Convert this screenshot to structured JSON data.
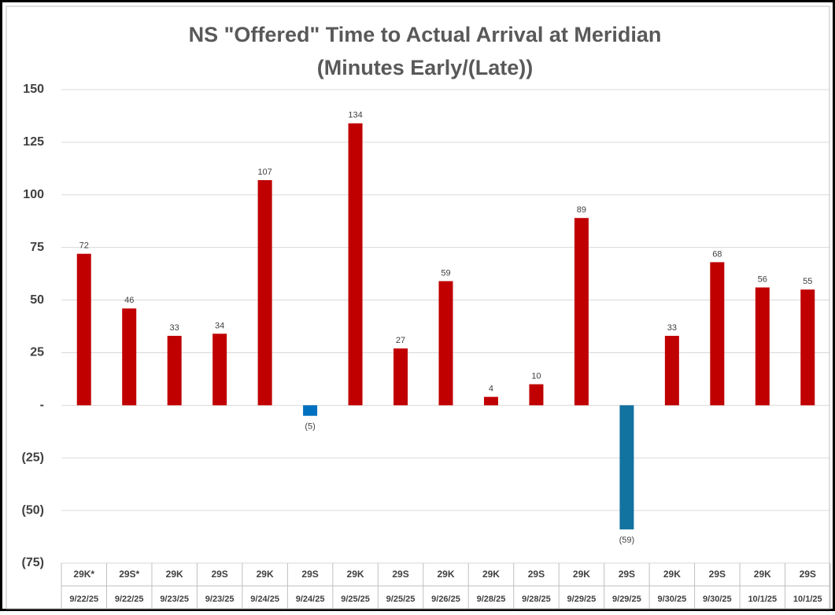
{
  "chart_data": {
    "type": "bar",
    "title": [
      "NS \"Offered\" Time to Actual Arrival at Meridian",
      "(Minutes Early/(Late))"
    ],
    "categories": [
      "29K*",
      "29S*",
      "29K",
      "29S",
      "29K",
      "29S",
      "29K",
      "29S",
      "29K",
      "29K",
      "29S",
      "29K",
      "29S",
      "29K",
      "29S",
      "29K",
      "29S"
    ],
    "dates": [
      "9/22/25",
      "9/22/25",
      "9/23/25",
      "9/23/25",
      "9/24/25",
      "9/24/25",
      "9/25/25",
      "9/25/25",
      "9/26/25",
      "9/28/25",
      "9/28/25",
      "9/29/25",
      "9/29/25",
      "9/30/25",
      "9/30/25",
      "10/1/25",
      "10/1/25"
    ],
    "values": [
      72,
      46,
      33,
      34,
      107,
      -5,
      134,
      27,
      59,
      4,
      10,
      89,
      -59,
      33,
      68,
      56,
      55
    ],
    "value_labels": [
      "72",
      "46",
      "33",
      "34",
      "107",
      "(5)",
      "134",
      "27",
      "59",
      "4",
      "10",
      "89",
      "(59)",
      "33",
      "68",
      "56",
      "55"
    ],
    "colors": [
      "#c00000",
      "#c00000",
      "#c00000",
      "#c00000",
      "#c00000",
      "#0070c0",
      "#c00000",
      "#c00000",
      "#c00000",
      "#c00000",
      "#c00000",
      "#c00000",
      "#1272a0",
      "#c00000",
      "#c00000",
      "#c00000",
      "#c00000"
    ],
    "ylim": [
      -75,
      150
    ],
    "yticks": [
      {
        "value": -75,
        "label": "(75)"
      },
      {
        "value": -50,
        "label": "(50)"
      },
      {
        "value": -25,
        "label": "(25)"
      },
      {
        "value": 0,
        "label": "-"
      },
      25,
      50,
      75,
      100,
      125,
      150
    ],
    "grid": true
  }
}
